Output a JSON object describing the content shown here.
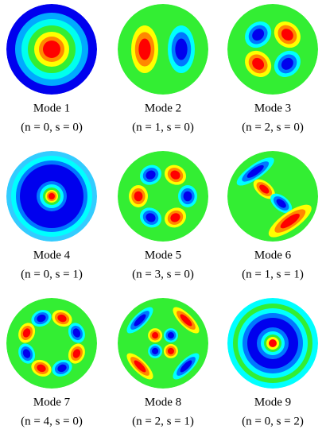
{
  "modes": [
    {
      "title": "Mode 1",
      "label": "(n = 0, s = 0)"
    },
    {
      "title": "Mode 2",
      "label": "(n = 1, s = 0)"
    },
    {
      "title": "Mode 3",
      "label": "(n = 2, s = 0)"
    },
    {
      "title": "Mode 4",
      "label": "(n = 0, s = 1)"
    },
    {
      "title": "Mode 5",
      "label": "(n = 3, s = 0)"
    },
    {
      "title": "Mode 6",
      "label": "(n = 1, s = 1)"
    },
    {
      "title": "Mode 7",
      "label": "(n = 4, s = 0)"
    },
    {
      "title": "Mode 8",
      "label": "(n = 2, s = 1)"
    },
    {
      "title": "Mode 9",
      "label": "(n = 0, s = 2)"
    }
  ]
}
